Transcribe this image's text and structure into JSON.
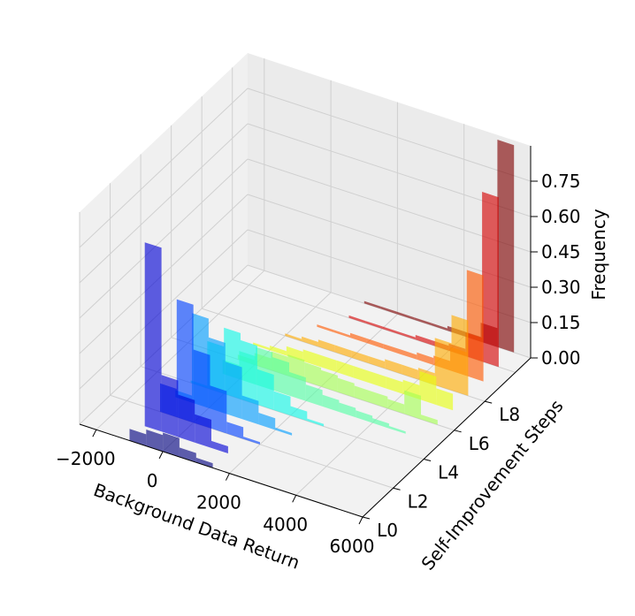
{
  "chart_data": {
    "type": "3d-histogram",
    "xlabel": "Background Data Return",
    "ylabel": "Self-Improvement Steps",
    "zlabel": "Frequency",
    "xlim": [
      -2500,
      6000
    ],
    "zlim": [
      0,
      0.9
    ],
    "x_ticks": [
      -2000,
      0,
      2000,
      4000,
      6000
    ],
    "x_tick_labels": [
      "−2000",
      "0",
      "2000",
      "4000",
      "6000"
    ],
    "y_tick_labels": [
      "L0",
      "L2",
      "L4",
      "L6",
      "L8"
    ],
    "z_ticks": [
      0.0,
      0.15,
      0.3,
      0.45,
      0.6,
      0.75
    ],
    "z_tick_labels": [
      "0.00",
      "0.15",
      "0.30",
      "0.45",
      "0.60",
      "0.75"
    ],
    "bin_width": 500,
    "bin_starts": [
      -1000,
      -500,
      0,
      500,
      1000,
      1500,
      2000,
      2500,
      3000,
      3500,
      4000,
      4500,
      5000
    ],
    "series": [
      {
        "color": "#00007f",
        "values": [
          0.05,
          0.07,
          0.08,
          0.04,
          0.02,
          0,
          0,
          0,
          0,
          0,
          0,
          0,
          0
        ]
      },
      {
        "color": "#0000d5",
        "values": [
          0.78,
          0.24,
          0.18,
          0.12,
          0.03,
          0,
          0,
          0,
          0,
          0,
          0,
          0,
          0
        ]
      },
      {
        "color": "#0040ff",
        "values": [
          0.12,
          0.5,
          0.31,
          0.18,
          0.05,
          0.01,
          0,
          0,
          0,
          0,
          0,
          0,
          0
        ]
      },
      {
        "color": "#009cff",
        "values": [
          0.03,
          0.38,
          0.3,
          0.22,
          0.1,
          0.05,
          0.01,
          0,
          0,
          0,
          0,
          0,
          0
        ]
      },
      {
        "color": "#0ff8e7",
        "values": [
          0.01,
          0.2,
          0.28,
          0.25,
          0.15,
          0.08,
          0.04,
          0.01,
          0,
          0,
          0,
          0,
          0
        ]
      },
      {
        "color": "#52ffa4",
        "values": [
          0,
          0.06,
          0.12,
          0.16,
          0.14,
          0.1,
          0.07,
          0.05,
          0.04,
          0.03,
          0.02,
          0.01,
          0
        ]
      },
      {
        "color": "#a4ff52",
        "values": [
          0,
          0.02,
          0.05,
          0.08,
          0.09,
          0.08,
          0.07,
          0.06,
          0.05,
          0.05,
          0.04,
          0.1,
          0.02
        ]
      },
      {
        "color": "#e7ff0f",
        "values": [
          0,
          0.01,
          0.02,
          0.04,
          0.05,
          0.05,
          0.05,
          0.05,
          0.05,
          0.05,
          0.06,
          0.12,
          0.07
        ]
      },
      {
        "color": "#ffab00",
        "values": [
          0,
          0,
          0.01,
          0.02,
          0.03,
          0.03,
          0.03,
          0.03,
          0.04,
          0.04,
          0.05,
          0.2,
          0.32
        ]
      },
      {
        "color": "#ff5900",
        "values": [
          0,
          0,
          0,
          0.01,
          0.01,
          0.02,
          0.02,
          0.02,
          0.02,
          0.03,
          0.04,
          0.1,
          0.45
        ]
      },
      {
        "color": "#d50000",
        "values": [
          0,
          0,
          0,
          0,
          0.01,
          0.01,
          0.01,
          0.01,
          0.02,
          0.02,
          0.03,
          0.1,
          0.72
        ]
      },
      {
        "color": "#7f0000",
        "values": [
          0,
          0,
          0,
          0,
          0.01,
          0.01,
          0.01,
          0.01,
          0.01,
          0.02,
          0.02,
          0.08,
          0.88
        ]
      }
    ]
  }
}
